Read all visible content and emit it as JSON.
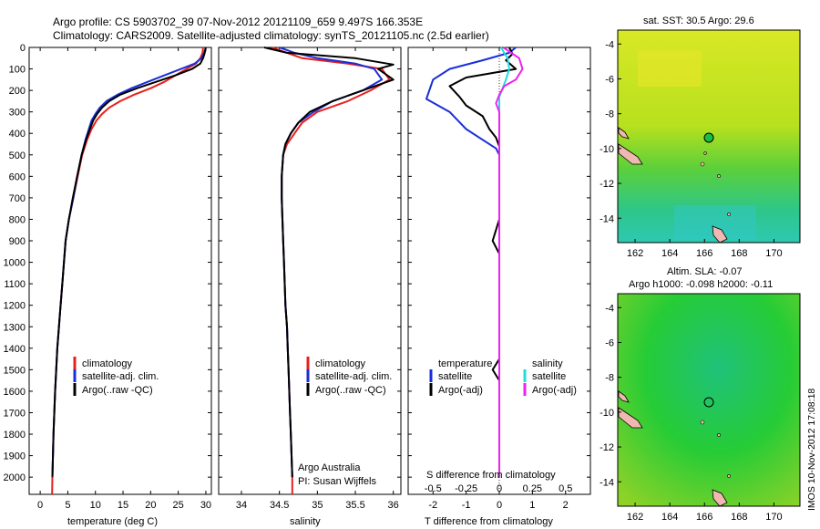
{
  "header": {
    "line1": "Argo profile: CS 5903702_39 07-Nov-2012 20121109_659 9.497S 166.353E",
    "line2": "Climatology: CARS2009. Satellite-adjusted climatology: synTS_20121105.nc (2.5d earlier)"
  },
  "colors": {
    "climatology": "#e8201c",
    "satellite": "#1a2ed8",
    "argo": "#000000",
    "salinity_satellite": "#22dcdc",
    "salinity_argo": "#ee22ee"
  },
  "depth_axis": {
    "ylim": [
      2080,
      0
    ],
    "ticks": [
      0,
      100,
      200,
      300,
      400,
      500,
      600,
      700,
      800,
      900,
      1000,
      1100,
      1200,
      1300,
      1400,
      1500,
      1600,
      1700,
      1800,
      1900,
      2000
    ]
  },
  "panels": {
    "temperature": {
      "xlabel": "temperature (deg C)",
      "legend": [
        "climatology",
        "satellite-adj. clim.",
        "Argo(..raw -QC)"
      ]
    },
    "salinity": {
      "xlabel": "salinity",
      "legend": [
        "climatology",
        "satellite-adj. clim.",
        "Argo(..raw -QC)"
      ],
      "note1": "Argo Australia",
      "note2": "PI: Susan Wijffels"
    },
    "difference": {
      "xlabel": "T difference from climatology",
      "top_label": "S difference from climatology",
      "legend_temperature_title": "temperature",
      "legend_salinity_title": "salinity",
      "legend_labels": [
        "satellite",
        "Argo(-adj)",
        "satellite",
        "Argo(-adj)"
      ]
    },
    "map_sst": {
      "title": "sat. SST: 30.5  Argo: 29.6"
    },
    "map_sla": {
      "title1": "Altim. SLA: -0.07",
      "title2": "Argo h1000: -0.098  h2000: -0.11"
    },
    "credit": "IMOS 10-Nov-2012 17:08:18"
  },
  "chart_data": [
    {
      "type": "line",
      "title": "",
      "xlabel": "temperature (deg C)",
      "ylabel": "",
      "xlim": [
        -2,
        31
      ],
      "ylim": [
        2080,
        0
      ],
      "xticks": [
        0,
        5,
        10,
        15,
        20,
        25,
        30
      ],
      "series": [
        {
          "name": "climatology",
          "color": "#e8201c",
          "points": [
            [
              29.5,
              0
            ],
            [
              29.4,
              25
            ],
            [
              29.0,
              50
            ],
            [
              28.2,
              75
            ],
            [
              26.5,
              100
            ],
            [
              24.5,
              130
            ],
            [
              22.5,
              160
            ],
            [
              20.0,
              190
            ],
            [
              17.0,
              220
            ],
            [
              14.5,
              250
            ],
            [
              12.5,
              280
            ],
            [
              11.2,
              310
            ],
            [
              10.2,
              340
            ],
            [
              9.3,
              380
            ],
            [
              8.5,
              430
            ],
            [
              7.6,
              500
            ],
            [
              6.8,
              600
            ],
            [
              6.0,
              700
            ],
            [
              5.2,
              800
            ],
            [
              4.6,
              900
            ],
            [
              4.3,
              1000
            ],
            [
              4.0,
              1100
            ],
            [
              3.7,
              1200
            ],
            [
              3.4,
              1300
            ],
            [
              3.1,
              1400
            ],
            [
              2.9,
              1500
            ],
            [
              2.7,
              1600
            ],
            [
              2.55,
              1700
            ],
            [
              2.4,
              1800
            ],
            [
              2.3,
              1900
            ],
            [
              2.2,
              2000
            ],
            [
              2.15,
              2080
            ]
          ]
        },
        {
          "name": "satellite-adj. clim.",
          "color": "#1a2ed8",
          "points": [
            [
              30.0,
              0
            ],
            [
              29.7,
              25
            ],
            [
              29.2,
              50
            ],
            [
              28.0,
              75
            ],
            [
              25.5,
              100
            ],
            [
              22.5,
              130
            ],
            [
              19.5,
              160
            ],
            [
              16.5,
              190
            ],
            [
              14.0,
              220
            ],
            [
              12.0,
              250
            ],
            [
              10.8,
              280
            ],
            [
              10.0,
              310
            ],
            [
              9.3,
              340
            ],
            [
              8.8,
              380
            ],
            [
              8.2,
              430
            ],
            [
              7.5,
              500
            ],
            [
              6.7,
              600
            ],
            [
              6.0,
              700
            ],
            [
              5.2,
              800
            ],
            [
              4.6,
              900
            ],
            [
              4.3,
              1000
            ],
            [
              4.0,
              1100
            ],
            [
              3.7,
              1200
            ],
            [
              3.4,
              1300
            ],
            [
              3.1,
              1400
            ],
            [
              2.9,
              1500
            ],
            [
              2.7,
              1600
            ],
            [
              2.55,
              1700
            ],
            [
              2.4,
              1800
            ],
            [
              2.3,
              1900
            ],
            [
              2.2,
              2000
            ]
          ]
        },
        {
          "name": "Argo(..raw -QC)",
          "color": "#000000",
          "points": [
            [
              30.0,
              0
            ],
            [
              29.8,
              25
            ],
            [
              29.5,
              50
            ],
            [
              29.0,
              75
            ],
            [
              27.5,
              100
            ],
            [
              24.5,
              130
            ],
            [
              21.0,
              160
            ],
            [
              17.5,
              190
            ],
            [
              14.5,
              220
            ],
            [
              12.5,
              250
            ],
            [
              11.2,
              280
            ],
            [
              10.3,
              310
            ],
            [
              9.6,
              340
            ],
            [
              9.0,
              380
            ],
            [
              8.3,
              430
            ],
            [
              7.5,
              500
            ],
            [
              6.7,
              600
            ],
            [
              5.9,
              700
            ],
            [
              5.2,
              800
            ],
            [
              4.6,
              900
            ],
            [
              4.3,
              1000
            ],
            [
              4.0,
              1100
            ],
            [
              3.7,
              1200
            ],
            [
              3.4,
              1300
            ],
            [
              3.1,
              1400
            ],
            [
              2.9,
              1500
            ],
            [
              2.7,
              1600
            ],
            [
              2.55,
              1700
            ],
            [
              2.4,
              1800
            ],
            [
              2.3,
              1900
            ],
            [
              2.2,
              2000
            ]
          ]
        }
      ]
    },
    {
      "type": "line",
      "title": "",
      "xlabel": "salinity",
      "ylabel": "",
      "xlim": [
        33.7,
        36.1
      ],
      "ylim": [
        2080,
        0
      ],
      "xticks": [
        34,
        34.5,
        35,
        35.5,
        36
      ],
      "series": [
        {
          "name": "climatology",
          "color": "#e8201c",
          "points": [
            [
              34.4,
              0
            ],
            [
              34.6,
              25
            ],
            [
              34.8,
              50
            ],
            [
              35.4,
              75
            ],
            [
              35.85,
              100
            ],
            [
              35.95,
              150
            ],
            [
              35.7,
              200
            ],
            [
              35.4,
              250
            ],
            [
              35.0,
              300
            ],
            [
              34.8,
              350
            ],
            [
              34.7,
              400
            ],
            [
              34.6,
              450
            ],
            [
              34.55,
              500
            ],
            [
              34.53,
              600
            ],
            [
              34.53,
              700
            ],
            [
              34.54,
              800
            ],
            [
              34.55,
              900
            ],
            [
              34.56,
              1000
            ],
            [
              34.57,
              1100
            ],
            [
              34.58,
              1200
            ],
            [
              34.6,
              1300
            ],
            [
              34.61,
              1400
            ],
            [
              34.62,
              1500
            ],
            [
              34.63,
              1600
            ],
            [
              34.64,
              1700
            ],
            [
              34.65,
              1800
            ],
            [
              34.66,
              1900
            ],
            [
              34.67,
              2000
            ],
            [
              34.67,
              2080
            ]
          ]
        },
        {
          "name": "satellite-adj. clim.",
          "color": "#1a2ed8",
          "points": [
            [
              34.5,
              0
            ],
            [
              34.7,
              25
            ],
            [
              35.0,
              50
            ],
            [
              35.5,
              75
            ],
            [
              35.75,
              100
            ],
            [
              35.85,
              150
            ],
            [
              35.6,
              200
            ],
            [
              35.2,
              250
            ],
            [
              34.95,
              300
            ],
            [
              34.75,
              350
            ],
            [
              34.65,
              400
            ],
            [
              34.58,
              450
            ],
            [
              34.55,
              500
            ],
            [
              34.53,
              600
            ],
            [
              34.53,
              700
            ],
            [
              34.54,
              800
            ],
            [
              34.55,
              900
            ],
            [
              34.56,
              1000
            ],
            [
              34.57,
              1100
            ],
            [
              34.58,
              1200
            ],
            [
              34.6,
              1300
            ],
            [
              34.61,
              1400
            ],
            [
              34.62,
              1500
            ],
            [
              34.63,
              1600
            ],
            [
              34.64,
              1700
            ],
            [
              34.65,
              1800
            ],
            [
              34.66,
              1900
            ],
            [
              34.67,
              2000
            ]
          ]
        },
        {
          "name": "Argo(..raw -QC)",
          "color": "#000000",
          "points": [
            [
              34.3,
              0
            ],
            [
              34.6,
              25
            ],
            [
              35.5,
              50
            ],
            [
              36.0,
              80
            ],
            [
              35.8,
              100
            ],
            [
              36.0,
              150
            ],
            [
              35.6,
              200
            ],
            [
              35.2,
              250
            ],
            [
              34.9,
              300
            ],
            [
              34.75,
              350
            ],
            [
              34.65,
              400
            ],
            [
              34.58,
              450
            ],
            [
              34.55,
              500
            ],
            [
              34.53,
              600
            ],
            [
              34.53,
              700
            ],
            [
              34.54,
              800
            ],
            [
              34.55,
              900
            ],
            [
              34.56,
              1000
            ],
            [
              34.57,
              1100
            ],
            [
              34.58,
              1200
            ],
            [
              34.6,
              1300
            ],
            [
              34.61,
              1400
            ],
            [
              34.62,
              1500
            ],
            [
              34.63,
              1600
            ],
            [
              34.64,
              1700
            ],
            [
              34.65,
              1800
            ],
            [
              34.66,
              1900
            ],
            [
              34.67,
              2000
            ]
          ]
        }
      ]
    },
    {
      "type": "line",
      "title": "",
      "xlabel": "T difference from climatology",
      "ylabel": "",
      "xlim": [
        -2.75,
        2.75
      ],
      "ylim": [
        2080,
        0
      ],
      "xticks": [
        -2,
        -1,
        0,
        1,
        2
      ],
      "top_xlabel": "S difference from climatology",
      "top_xticks": [
        -0.5,
        -0.25,
        0,
        0.25,
        0.5
      ],
      "series": [
        {
          "name": "temperature satellite",
          "color": "#1a2ed8",
          "points": [
            [
              0.5,
              0
            ],
            [
              0.3,
              25
            ],
            [
              -0.5,
              60
            ],
            [
              -1.5,
              100
            ],
            [
              -2.0,
              150
            ],
            [
              -2.2,
              240
            ],
            [
              -1.5,
              300
            ],
            [
              -1.0,
              380
            ],
            [
              -0.5,
              430
            ],
            [
              -0.1,
              470
            ],
            [
              0,
              500
            ],
            [
              0,
              2000
            ]
          ]
        },
        {
          "name": "temperature Argo(-adj)",
          "color": "#000000",
          "points": [
            [
              0.3,
              0
            ],
            [
              0.4,
              30
            ],
            [
              0.2,
              60
            ],
            [
              0.5,
              100
            ],
            [
              -1.0,
              140
            ],
            [
              -1.5,
              180
            ],
            [
              -1.2,
              230
            ],
            [
              -1.0,
              270
            ],
            [
              -0.5,
              320
            ],
            [
              -0.3,
              380
            ],
            [
              -0.1,
              420
            ],
            [
              0,
              460
            ],
            [
              0,
              800
            ],
            [
              -0.2,
              900
            ],
            [
              0,
              960
            ],
            [
              0,
              1450
            ],
            [
              -0.2,
              1500
            ],
            [
              0,
              1550
            ],
            [
              0,
              2000
            ]
          ]
        },
        {
          "name": "salinity satellite",
          "color": "#22dcdc",
          "points": [
            [
              0.05,
              0
            ],
            [
              0.25,
              50
            ],
            [
              0.3,
              100
            ],
            [
              0.2,
              150
            ],
            [
              0.0,
              230
            ],
            [
              0,
              300
            ],
            [
              0,
              2000
            ]
          ]
        },
        {
          "name": "salinity Argo(-adj)",
          "color": "#ee22ee",
          "points": [
            [
              0.12,
              0
            ],
            [
              0.6,
              50
            ],
            [
              0.7,
              100
            ],
            [
              0.5,
              150
            ],
            [
              0.15,
              180
            ],
            [
              0.0,
              220
            ],
            [
              -0.1,
              260
            ],
            [
              0,
              300
            ],
            [
              0,
              500
            ],
            [
              0,
              2000
            ]
          ]
        }
      ]
    }
  ]
}
